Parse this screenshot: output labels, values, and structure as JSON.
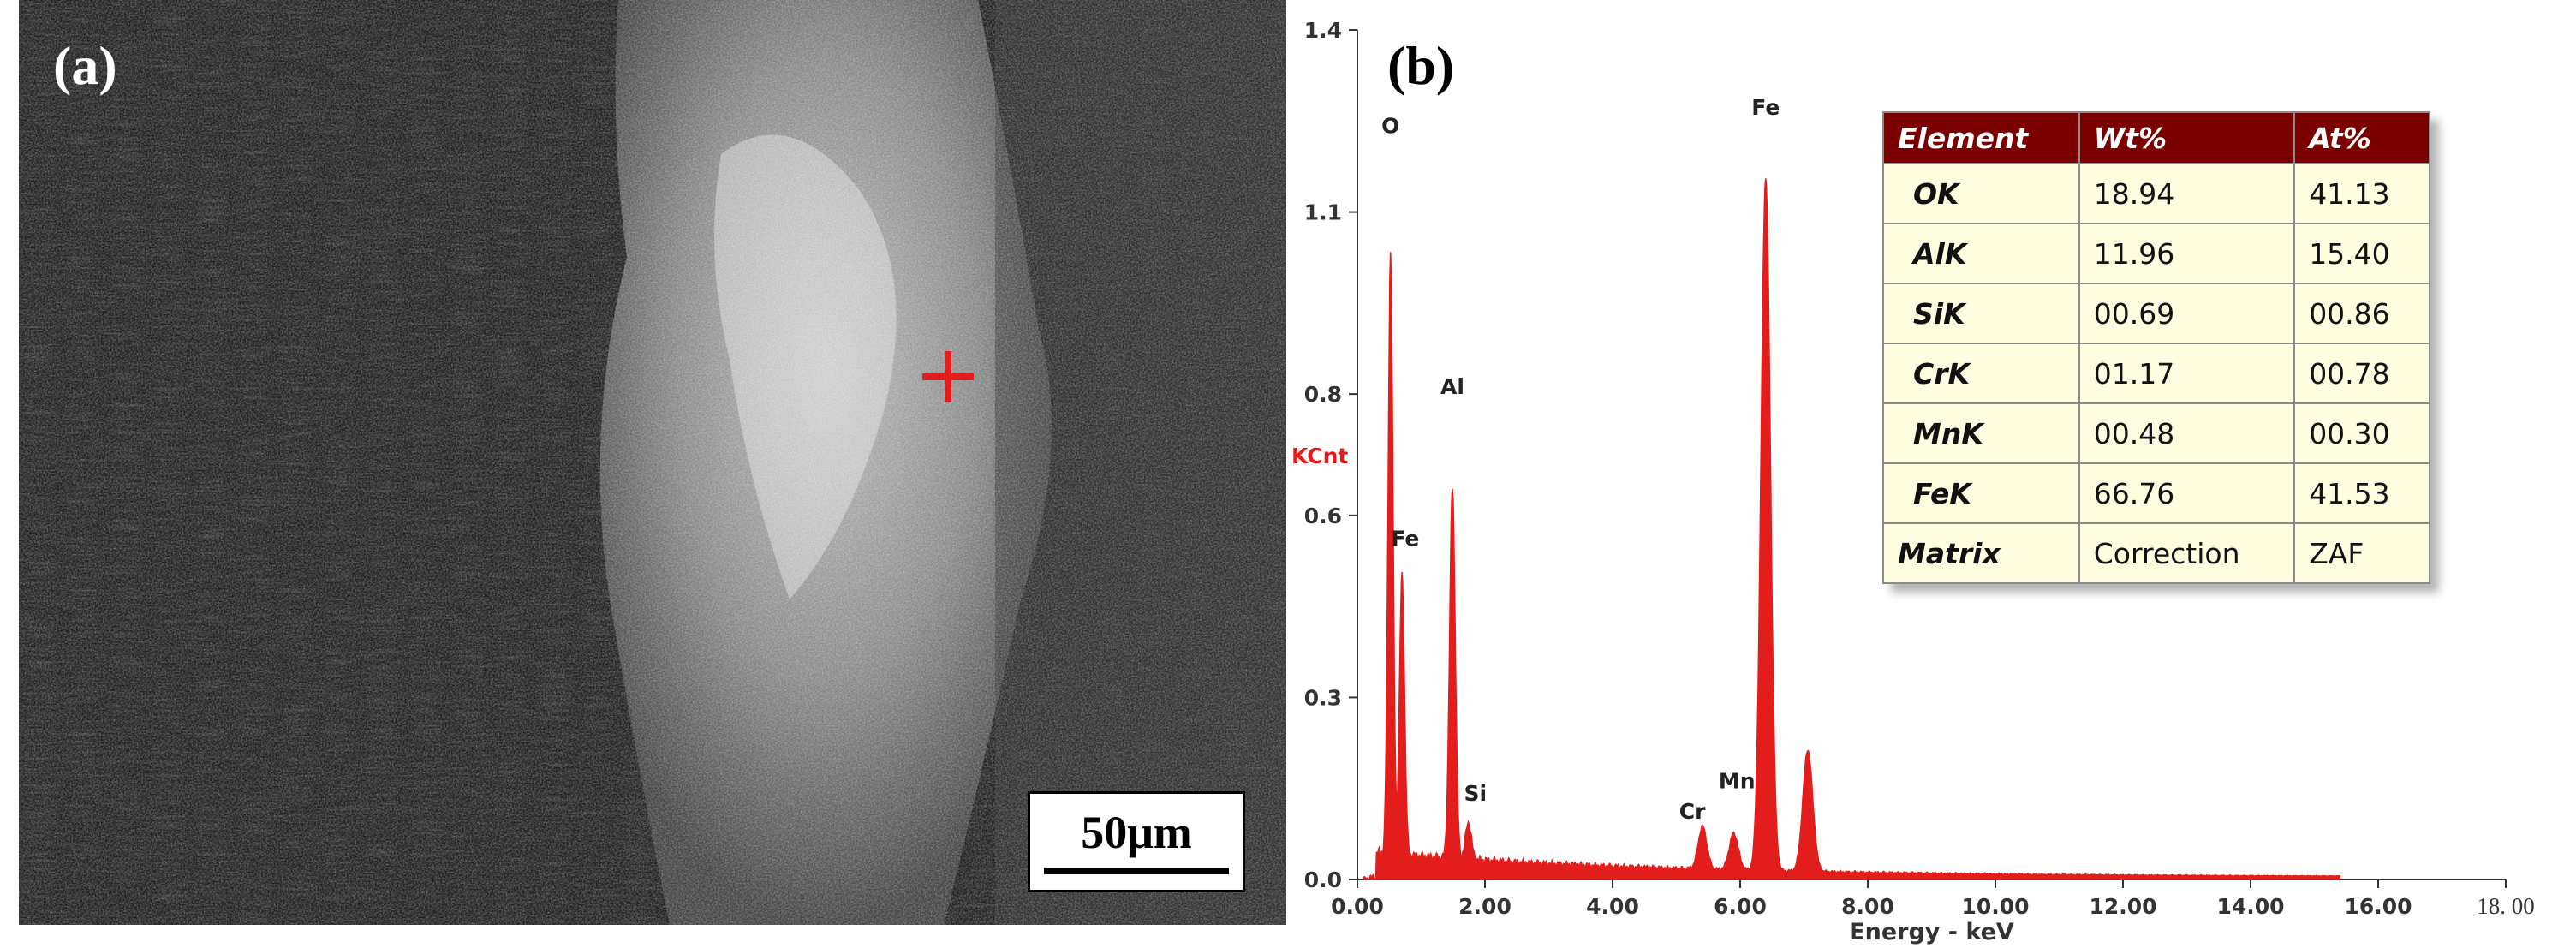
{
  "panel_a": {
    "label": "(a)",
    "scale_bar": "50μm"
  },
  "panel_b": {
    "label": "(b)"
  },
  "chart_data": {
    "type": "line",
    "title": "",
    "xlabel": "Energy - keV",
    "ylabel": "KCnt",
    "xlim": [
      0,
      18
    ],
    "ylim": [
      0,
      1.4
    ],
    "x_ticks": [
      "0.00",
      "2.00",
      "4.00",
      "6.00",
      "8.00",
      "10.00",
      "12.00",
      "14.00",
      "16.00",
      "18. 00"
    ],
    "y_ticks": [
      "0.0",
      "0.3",
      "0.6",
      "0.8",
      "1.1",
      "1.4"
    ],
    "grid": false,
    "colors": {
      "spectrum": "#e31c1c",
      "ylabel": "#e31c1c"
    },
    "peaks": [
      {
        "x": 0.52,
        "y": 0.99
      },
      {
        "x": 0.7,
        "y": 0.46
      },
      {
        "x": 1.49,
        "y": 0.61
      },
      {
        "x": 1.74,
        "y": 0.06
      },
      {
        "x": 5.41,
        "y": 0.07
      },
      {
        "x": 5.9,
        "y": 0.06
      },
      {
        "x": 6.4,
        "y": 1.14
      },
      {
        "x": 7.06,
        "y": 0.2
      }
    ],
    "annotations": [
      {
        "text": "O",
        "x": 0.52,
        "y": 1.23
      },
      {
        "text": "Fe",
        "x": 0.75,
        "y": 0.55
      },
      {
        "text": "Al",
        "x": 1.49,
        "y": 0.8
      },
      {
        "text": "Si",
        "x": 1.85,
        "y": 0.13
      },
      {
        "text": "Cr",
        "x": 5.25,
        "y": 0.1
      },
      {
        "text": "Mn",
        "x": 5.95,
        "y": 0.15
      },
      {
        "text": "Fe",
        "x": 6.4,
        "y": 1.26
      }
    ]
  },
  "table": {
    "headers": [
      "Element",
      "Wt%",
      "At%"
    ],
    "rows": [
      [
        "OK",
        "18.94",
        "41.13"
      ],
      [
        "AlK",
        "11.96",
        "15.40"
      ],
      [
        "SiK",
        "00.69",
        "00.86"
      ],
      [
        "CrK",
        "01.17",
        "00.78"
      ],
      [
        "MnK",
        "00.48",
        "00.30"
      ],
      [
        "FeK",
        "66.76",
        "41.53"
      ],
      [
        "Matrix",
        "Correction",
        "ZAF"
      ]
    ]
  }
}
